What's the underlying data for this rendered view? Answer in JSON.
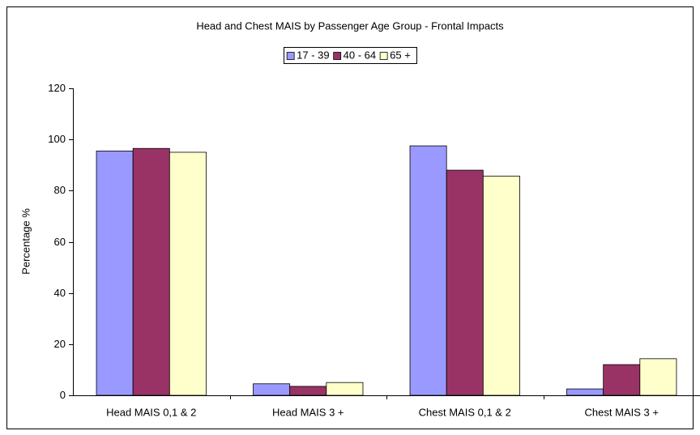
{
  "chart_data": {
    "type": "bar",
    "title": "Head and Chest MAIS by Passenger Age Group - Frontal Impacts",
    "y_label": "Percentage %",
    "categories": [
      "Head MAIS 0,1 & 2",
      "Head MAIS 3 +",
      "Chest MAIS 0,1 & 2",
      "Chest MAIS 3 +"
    ],
    "series": [
      {
        "name": "17 - 39",
        "color": "#9999ff",
        "values": [
          95.5,
          4.5,
          97.5,
          2.5
        ]
      },
      {
        "name": "40 - 64",
        "color": "#993366",
        "values": [
          96.5,
          3.5,
          88,
          12
        ]
      },
      {
        "name": "65 +",
        "color": "#ffffcc",
        "values": [
          95,
          5,
          85.7,
          14.3
        ]
      }
    ],
    "ylim": [
      0,
      120
    ],
    "yticks": [
      0,
      20,
      40,
      60,
      80,
      100,
      120
    ],
    "grid": false,
    "legend": "top"
  }
}
